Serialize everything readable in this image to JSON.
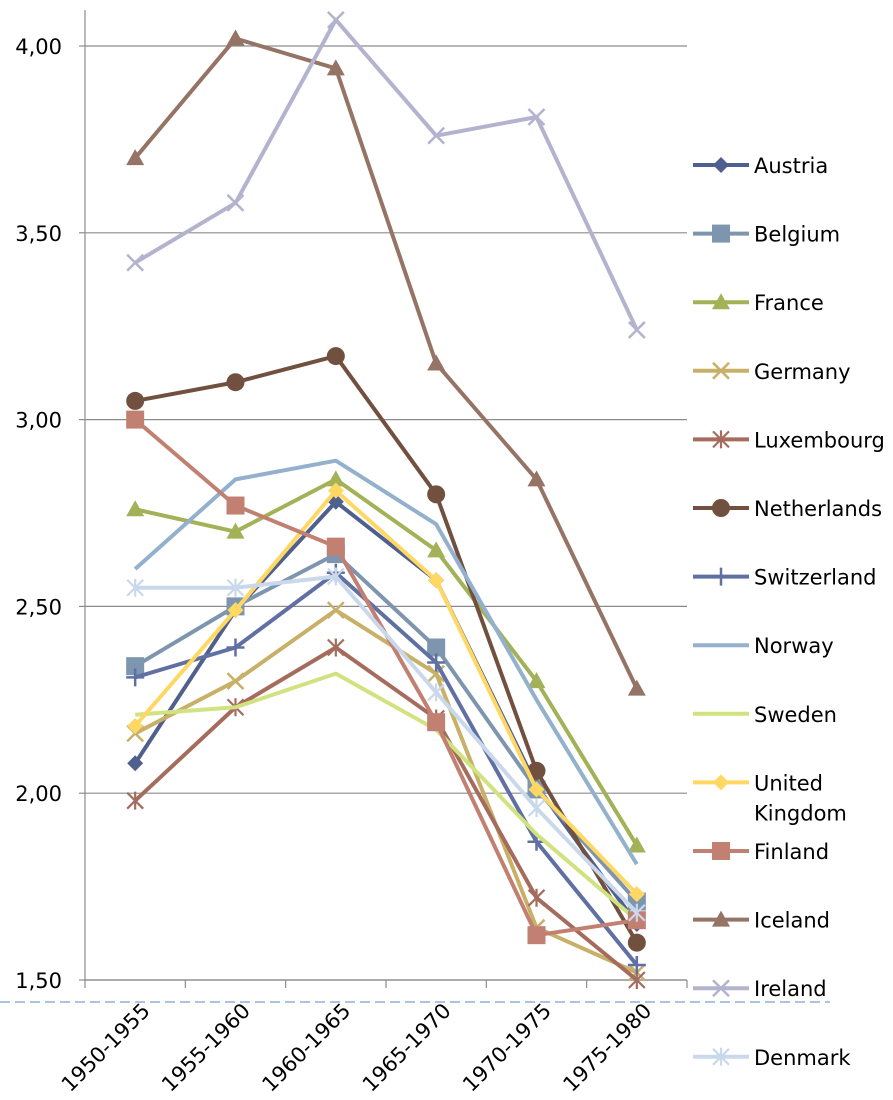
{
  "chart_data": {
    "type": "line",
    "title": "",
    "xlabel": "",
    "ylabel": "",
    "categories": [
      "1950-1955",
      "1955-1960",
      "1960-1965",
      "1965-1970",
      "1970-1975",
      "1975-1980"
    ],
    "ylim": [
      1.5,
      4.1
    ],
    "yticks": [
      "4,00",
      "3,50",
      "3,00",
      "2,50",
      "2,00",
      "1,50"
    ],
    "grid": true,
    "legend_position": "right",
    "series": [
      {
        "name": "Austria",
        "color": "#4f5f8e",
        "marker": "diamond",
        "values": [
          2.08,
          2.49,
          2.78,
          2.57,
          2.02,
          1.65
        ]
      },
      {
        "name": "Belgium",
        "color": "#7d95ae",
        "marker": "square",
        "values": [
          2.34,
          2.5,
          2.64,
          2.39,
          2.01,
          1.71
        ]
      },
      {
        "name": "France",
        "color": "#a3b157",
        "marker": "triangle",
        "values": [
          2.76,
          2.7,
          2.84,
          2.65,
          2.3,
          1.86
        ]
      },
      {
        "name": "Germany",
        "color": "#c8b068",
        "marker": "x",
        "values": [
          2.16,
          2.3,
          2.49,
          2.32,
          1.64,
          1.52
        ]
      },
      {
        "name": "Luxembourg",
        "color": "#a56c5e",
        "marker": "star",
        "values": [
          1.98,
          2.23,
          2.39,
          2.2,
          1.72,
          1.5
        ]
      },
      {
        "name": "Netherlands",
        "color": "#72503f",
        "marker": "circle",
        "values": [
          3.05,
          3.1,
          3.17,
          2.8,
          2.06,
          1.6
        ]
      },
      {
        "name": "Switzerland",
        "color": "#6170a3",
        "marker": "plus",
        "values": [
          2.31,
          2.39,
          2.59,
          2.35,
          1.87,
          1.54
        ]
      },
      {
        "name": "Norway",
        "color": "#93b0cc",
        "marker": "line",
        "values": [
          2.6,
          2.84,
          2.89,
          2.72,
          2.25,
          1.81
        ]
      },
      {
        "name": "Sweden",
        "color": "#d1e37e",
        "marker": "line",
        "values": [
          2.21,
          2.23,
          2.32,
          2.17,
          1.89,
          1.66
        ]
      },
      {
        "name": "United Kingdom",
        "label_lines": [
          "United",
          "Kingdom"
        ],
        "color": "#ffd863",
        "marker": "diamond",
        "values": [
          2.18,
          2.49,
          2.81,
          2.57,
          2.01,
          1.73
        ]
      },
      {
        "name": "Finland",
        "color": "#c18072",
        "marker": "square",
        "values": [
          3.0,
          2.77,
          2.66,
          2.19,
          1.62,
          1.66
        ]
      },
      {
        "name": "Iceland",
        "color": "#957466",
        "marker": "triangle",
        "values": [
          3.7,
          4.02,
          3.94,
          3.15,
          2.84,
          2.28
        ]
      },
      {
        "name": "Ireland",
        "color": "#b3b3cf",
        "marker": "x",
        "values": [
          3.42,
          3.58,
          4.07,
          3.76,
          3.81,
          3.24
        ]
      },
      {
        "name": "Denmark",
        "color": "#cad8ec",
        "marker": "star",
        "values": [
          2.55,
          2.55,
          2.58,
          2.27,
          1.96,
          1.68
        ]
      }
    ]
  }
}
